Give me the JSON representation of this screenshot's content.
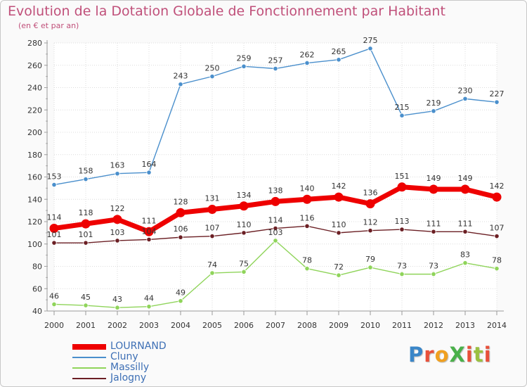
{
  "title": "Evolution de la Dotation Globale de Fonctionnement par Habitant",
  "subtitle": "(en € et par an)",
  "logo": {
    "text": "ProXiti",
    "colors": [
      "#3a86c8",
      "#e8503a",
      "#f0a020",
      "#4ab04a",
      "#e8503a",
      "#9ac040",
      "#e8503a"
    ]
  },
  "chart_data": {
    "type": "line",
    "title": "Evolution de la Dotation Globale de Fonctionnement par Habitant",
    "subtitle": "(en € et par an)",
    "xlabel": "",
    "ylabel": "",
    "x": [
      "2000",
      "2001",
      "2002",
      "2003",
      "2004",
      "2005",
      "2006",
      "2007",
      "2008",
      "2009",
      "2010",
      "2011",
      "2012",
      "2013",
      "2014"
    ],
    "ylim": [
      40,
      280
    ],
    "yticks": [
      40,
      60,
      80,
      100,
      120,
      140,
      160,
      180,
      200,
      220,
      240,
      260,
      280
    ],
    "grid": true,
    "legend_position": "bottom-left",
    "series": [
      {
        "name": "LOURNAND",
        "color": "#ee0000",
        "emphasis": true,
        "values": [
          114,
          118,
          122,
          111,
          128,
          131,
          134,
          138,
          140,
          142,
          136,
          151,
          149,
          149,
          142
        ]
      },
      {
        "name": "Cluny",
        "color": "#4a8fcc",
        "values": [
          153,
          158,
          163,
          164,
          243,
          250,
          259,
          257,
          262,
          265,
          275,
          215,
          219,
          230,
          227
        ]
      },
      {
        "name": "Massilly",
        "color": "#8fd45a",
        "values": [
          46,
          45,
          43,
          44,
          49,
          74,
          75,
          103,
          78,
          72,
          79,
          73,
          73,
          83,
          78
        ]
      },
      {
        "name": "Jalogny",
        "color": "#6b1f24",
        "values": [
          101,
          101,
          103,
          104,
          106,
          107,
          110,
          114,
          116,
          110,
          112,
          113,
          111,
          111,
          107
        ]
      }
    ]
  }
}
